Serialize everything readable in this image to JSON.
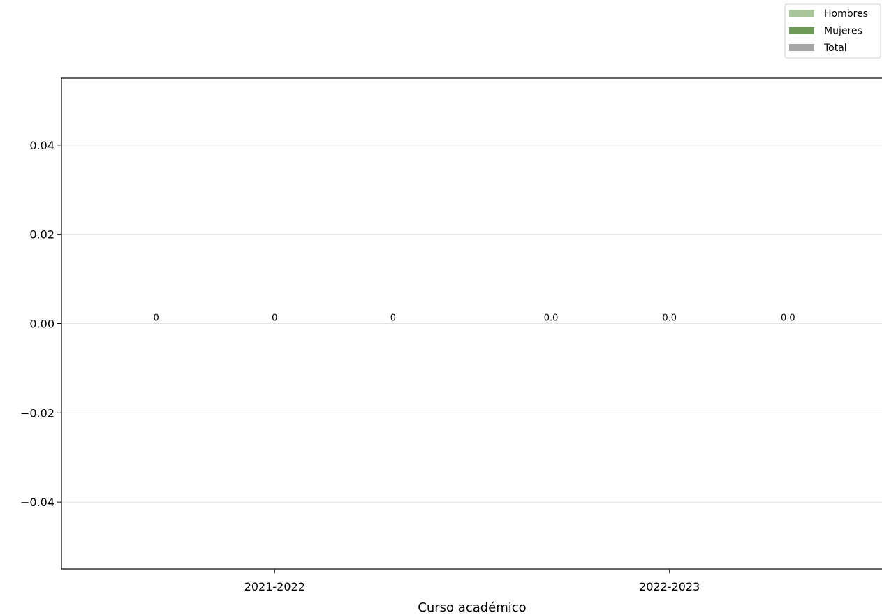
{
  "chart_data": {
    "type": "bar",
    "categories": [
      "2021-2022",
      "2022-2023"
    ],
    "series": [
      {
        "name": "Hombres",
        "values": [
          0,
          0.0
        ],
        "labels": [
          "0",
          "0.0"
        ],
        "color": "#a9c59a"
      },
      {
        "name": "Mujeres",
        "values": [
          0,
          0.0
        ],
        "labels": [
          "0",
          "0.0"
        ],
        "color": "#6d9a57"
      },
      {
        "name": "Total",
        "values": [
          0,
          0.0
        ],
        "labels": [
          "0",
          "0.0"
        ],
        "color": "#a6a6a6"
      }
    ],
    "xlabel": "Curso académico",
    "ylabel": "",
    "ylim": [
      -0.055,
      0.055
    ],
    "yticks": [
      -0.04,
      -0.02,
      0.0,
      0.02,
      0.04
    ],
    "ytick_labels": [
      "−0.04",
      "−0.02",
      "0.00",
      "0.02",
      "0.04"
    ],
    "grid": "horizontal",
    "legend_position": "top-right"
  }
}
